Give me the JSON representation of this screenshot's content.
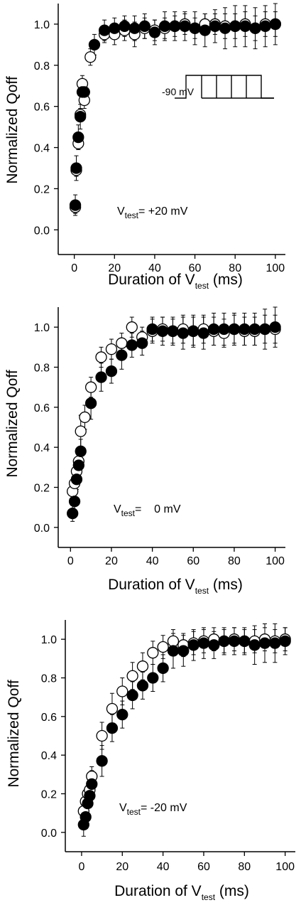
{
  "chart_data": [
    {
      "type": "scatter",
      "title": "",
      "xlabel": "Duration of V",
      "xlabel_sub": "test",
      "xlabel_unit": " (ms)",
      "ylabel": "Normalized Qoff",
      "xlim": [
        -8,
        105
      ],
      "ylim": [
        -0.12,
        1.1
      ],
      "xticks": [
        0,
        20,
        40,
        60,
        80,
        100
      ],
      "yticks": [
        0.0,
        0.2,
        0.4,
        0.6,
        0.8,
        1.0
      ],
      "annotation": {
        "prefix": "V",
        "sub": "test",
        "text": "= +20 mV"
      },
      "inset": {
        "label": "-90 mV"
      },
      "series": [
        {
          "marker": "open-circle",
          "x": [
            0.5,
            1,
            2,
            3,
            4,
            5,
            8,
            15,
            20,
            25,
            30,
            35,
            40,
            45,
            50,
            55,
            60,
            65,
            70,
            75,
            80,
            85,
            90,
            95,
            100
          ],
          "y": [
            0.11,
            0.29,
            0.42,
            0.56,
            0.71,
            0.63,
            0.84,
            0.95,
            0.95,
            0.97,
            0.95,
            0.98,
            0.97,
            0.98,
            0.99,
            1.0,
            0.98,
            1.0,
            1.0,
            0.99,
            0.99,
            1.0,
            0.98,
            1.0,
            1.0
          ],
          "err": [
            0.03,
            0.03,
            0.03,
            0.03,
            0.04,
            0.04,
            0.04,
            0.04,
            0.05,
            0.05,
            0.06,
            0.05,
            0.05,
            0.05,
            0.05,
            0.05,
            0.05,
            0.05,
            0.05,
            0.06,
            0.06,
            0.06,
            0.06,
            0.06,
            0.06
          ]
        },
        {
          "marker": "filled-circle",
          "x": [
            0.5,
            1,
            2,
            3,
            4,
            5,
            10,
            15,
            20,
            25,
            30,
            35,
            40,
            45,
            50,
            55,
            60,
            65,
            70,
            75,
            80,
            85,
            90,
            95,
            100
          ],
          "y": [
            0.12,
            0.3,
            0.45,
            0.55,
            0.67,
            0.67,
            0.9,
            0.97,
            0.98,
            0.99,
            0.98,
            0.99,
            0.96,
            0.99,
            0.99,
            0.99,
            0.98,
            0.97,
            0.99,
            0.98,
            0.99,
            0.99,
            0.98,
            0.99,
            1.0
          ],
          "err": [
            0.05,
            0.06,
            0.06,
            0.06,
            0.06,
            0.06,
            0.05,
            0.05,
            0.05,
            0.05,
            0.06,
            0.06,
            0.06,
            0.07,
            0.07,
            0.07,
            0.08,
            0.08,
            0.08,
            0.1,
            0.1,
            0.1,
            0.1,
            0.1,
            0.1
          ]
        }
      ]
    },
    {
      "type": "scatter",
      "title": "",
      "xlabel": "Duration of V",
      "xlabel_sub": "test",
      "xlabel_unit": " (ms)",
      "ylabel": "Normalized Qoff",
      "xlim": [
        -6,
        105
      ],
      "ylim": [
        -0.1,
        1.1
      ],
      "xticks": [
        0,
        20,
        40,
        60,
        80,
        100
      ],
      "yticks": [
        0.0,
        0.2,
        0.4,
        0.6,
        0.8,
        1.0
      ],
      "annotation": {
        "prefix": "V",
        "sub": "test",
        "text": "=    0 mV"
      },
      "series": [
        {
          "marker": "open-circle",
          "x": [
            1,
            2,
            3,
            4,
            5,
            7,
            10,
            15,
            20,
            25,
            30,
            35,
            40,
            45,
            50,
            55,
            60,
            65,
            70,
            75,
            80,
            85,
            90,
            95,
            100
          ],
          "y": [
            0.18,
            0.22,
            0.28,
            0.33,
            0.48,
            0.55,
            0.7,
            0.85,
            0.89,
            0.92,
            1.0,
            0.95,
            0.98,
            0.99,
            0.98,
            0.99,
            0.98,
            0.99,
            0.98,
            0.97,
            0.99,
            0.98,
            0.98,
            0.99,
            0.99
          ],
          "err": [
            0.05,
            0.05,
            0.05,
            0.05,
            0.08,
            0.06,
            0.05,
            0.05,
            0.05,
            0.05,
            0.05,
            0.05,
            0.06,
            0.06,
            0.06,
            0.07,
            0.07,
            0.07,
            0.07,
            0.07,
            0.07,
            0.07,
            0.07,
            0.07,
            0.07
          ]
        },
        {
          "marker": "filled-circle",
          "x": [
            1,
            2,
            3,
            4,
            5,
            10,
            15,
            20,
            25,
            30,
            35,
            40,
            45,
            50,
            55,
            60,
            65,
            70,
            75,
            80,
            85,
            90,
            95,
            100
          ],
          "y": [
            0.07,
            0.13,
            0.24,
            0.31,
            0.38,
            0.62,
            0.75,
            0.78,
            0.86,
            0.91,
            0.92,
            0.99,
            0.98,
            0.98,
            0.97,
            0.98,
            0.97,
            0.99,
            0.99,
            0.99,
            0.99,
            0.99,
            0.99,
            1.0
          ],
          "err": [
            0.04,
            0.05,
            0.05,
            0.05,
            0.06,
            0.08,
            0.07,
            0.06,
            0.07,
            0.06,
            0.06,
            0.06,
            0.07,
            0.07,
            0.08,
            0.08,
            0.08,
            0.08,
            0.08,
            0.08,
            0.08,
            0.08,
            0.1,
            0.1
          ]
        }
      ]
    },
    {
      "type": "scatter",
      "title": "",
      "xlabel": "Duration of V",
      "xlabel_sub": "test",
      "xlabel_unit": " (ms)",
      "ylabel": "Normalized Qoff",
      "xlim": [
        -8,
        105
      ],
      "ylim": [
        -0.1,
        1.1
      ],
      "xticks": [
        0,
        20,
        40,
        60,
        80,
        100
      ],
      "yticks": [
        0.0,
        0.2,
        0.4,
        0.6,
        0.8,
        1.0
      ],
      "annotation": {
        "prefix": "V",
        "sub": "test",
        "text": "= -20 mV"
      },
      "series": [
        {
          "marker": "open-circle",
          "x": [
            1,
            2,
            3,
            4,
            5,
            10,
            15,
            20,
            25,
            30,
            35,
            40,
            45,
            50,
            55,
            60,
            65,
            70,
            75,
            80,
            85,
            90,
            95,
            100
          ],
          "y": [
            0.11,
            0.16,
            0.2,
            0.22,
            0.29,
            0.5,
            0.64,
            0.73,
            0.81,
            0.86,
            0.93,
            0.96,
            0.99,
            0.97,
            0.98,
            0.99,
            1.0,
            0.99,
            1.0,
            0.99,
            0.99,
            1.0,
            0.99,
            1.0
          ],
          "err": [
            0.04,
            0.04,
            0.04,
            0.04,
            0.05,
            0.07,
            0.08,
            0.07,
            0.07,
            0.07,
            0.06,
            0.06,
            0.06,
            0.06,
            0.06,
            0.06,
            0.06,
            0.06,
            0.06,
            0.06,
            0.06,
            0.06,
            0.06,
            0.06
          ]
        },
        {
          "marker": "filled-circle",
          "x": [
            1,
            2,
            3,
            4,
            5,
            10,
            15,
            20,
            25,
            30,
            35,
            40,
            45,
            50,
            55,
            60,
            65,
            70,
            75,
            80,
            85,
            90,
            95,
            100
          ],
          "y": [
            0.04,
            0.08,
            0.15,
            0.19,
            0.25,
            0.37,
            0.54,
            0.61,
            0.71,
            0.76,
            0.8,
            0.85,
            0.94,
            0.94,
            0.97,
            0.98,
            0.97,
            0.99,
            0.99,
            0.99,
            0.97,
            0.98,
            0.98,
            0.99
          ],
          "err": [
            0.06,
            0.06,
            0.06,
            0.06,
            0.07,
            0.08,
            0.07,
            0.07,
            0.07,
            0.07,
            0.07,
            0.07,
            0.09,
            0.08,
            0.08,
            0.08,
            0.07,
            0.07,
            0.07,
            0.07,
            0.1,
            0.1,
            0.1,
            0.07
          ]
        }
      ]
    }
  ]
}
